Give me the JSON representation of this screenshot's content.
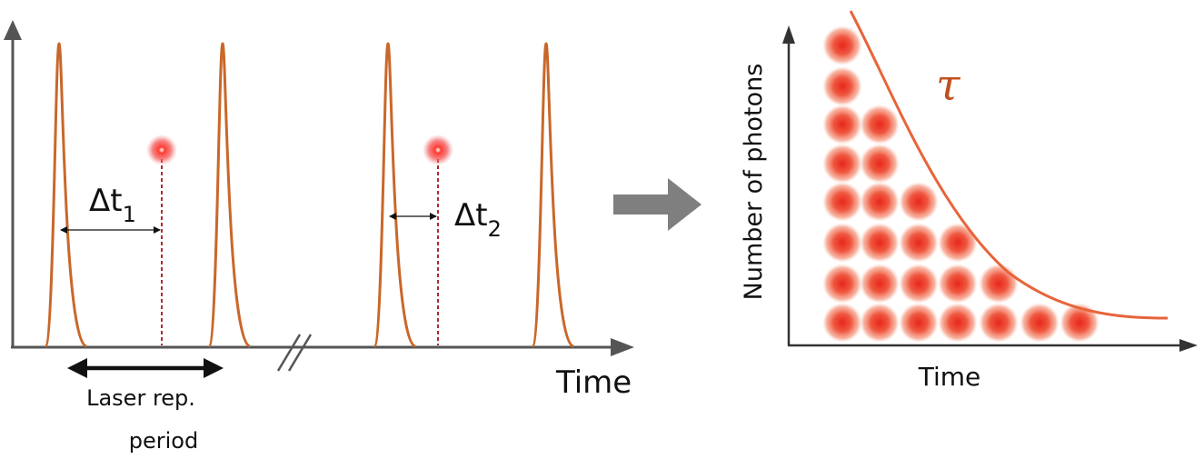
{
  "left_panel": {
    "delta_t1": {
      "symbol": "Δt",
      "subscript": "1"
    },
    "delta_t2": {
      "symbol": "Δt",
      "subscript": "2"
    },
    "x_axis_label": "Time",
    "period_label": [
      "Laser rep.",
      "period"
    ]
  },
  "right_panel": {
    "y_axis_label": "Number of photons",
    "x_axis_label": "Time",
    "decay_label": "τ"
  }
}
